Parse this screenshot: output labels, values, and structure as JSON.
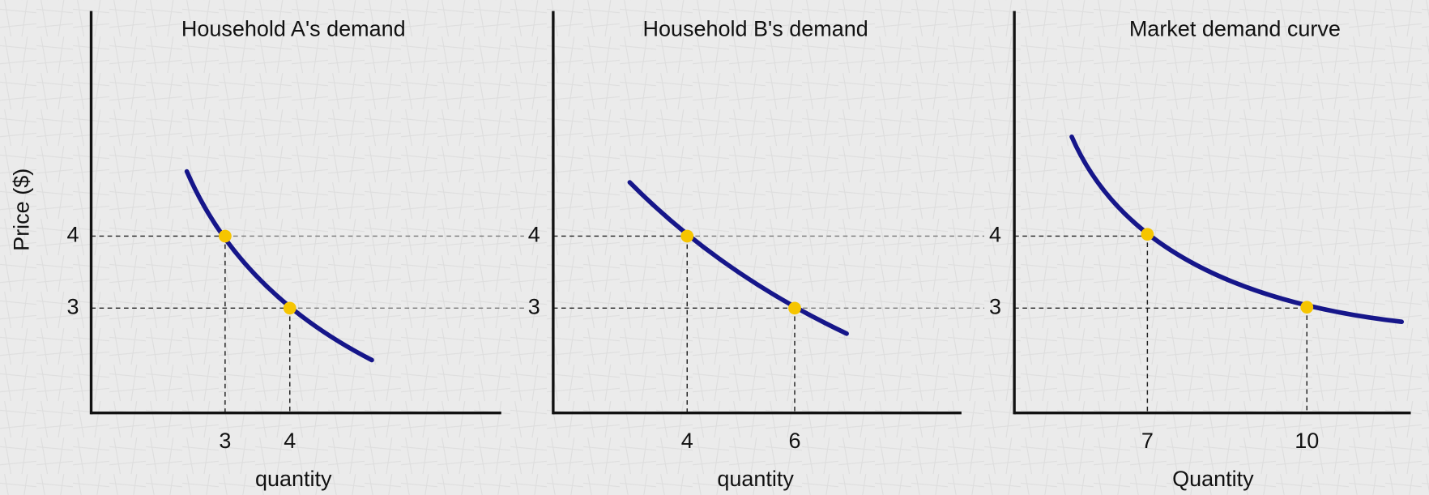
{
  "y_label": "Price ($)",
  "panels": [
    {
      "title": "Household A's demand",
      "x_label": "quantity",
      "y_ticks": [
        4,
        3
      ],
      "x_ticks": [
        3,
        4
      ]
    },
    {
      "title": "Household B's demand",
      "x_label": "quantity",
      "y_ticks": [
        4,
        3
      ],
      "x_ticks": [
        4,
        6
      ]
    },
    {
      "title": "Market demand curve",
      "x_label": "Quantity",
      "y_ticks": [
        4,
        3
      ],
      "x_ticks": [
        7,
        10
      ]
    }
  ]
}
